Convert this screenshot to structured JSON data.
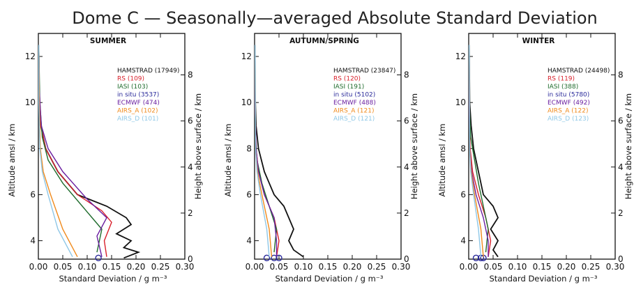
{
  "figure": {
    "title": "Dome C — Seasonally—averaged Absolute Standard Deviation"
  },
  "colors": {
    "HAMSTRAD": "#111111",
    "RS": "#d81f2a",
    "IASI": "#1e6b2c",
    "in situ": "#2a2a9a",
    "ECMWF": "#6a1fa0",
    "AIRS_A": "#f08a1c",
    "AIRS_D": "#8fc7e6"
  },
  "chart_data": [
    {
      "type": "line",
      "title": "SUMMER",
      "xlabel": "Standard Deviation / g m⁻³",
      "ylabel": "Altitude amsl / km",
      "y2label": "Height above surface / km",
      "xlim": [
        0,
        0.3
      ],
      "ylim": [
        3.2,
        13
      ],
      "y2_offset": 3.2,
      "xticks": [
        "0.00",
        "0.05",
        "0.10",
        "0.15",
        "0.20",
        "0.25",
        "0.30"
      ],
      "yticks": [
        "4",
        "6",
        "8",
        "10",
        "12"
      ],
      "y2ticks": [
        "0",
        "2",
        "4",
        "6",
        "8"
      ],
      "legend_position": "top-right",
      "legend": [
        {
          "name": "HAMSTRAD",
          "count": "(17949)"
        },
        {
          "name": "RS",
          "count": "(109)"
        },
        {
          "name": "IASI",
          "count": "(103)"
        },
        {
          "name": "in situ",
          "count": "(3537)"
        },
        {
          "name": "ECMWF",
          "count": "(474)"
        },
        {
          "name": "AIRS_A",
          "count": "(102)"
        },
        {
          "name": "AIRS_D",
          "count": "(101)"
        }
      ],
      "series": [
        {
          "name": "HAMSTRAD",
          "points": [
            [
              0.175,
              3.25
            ],
            [
              0.205,
              3.5
            ],
            [
              0.175,
              3.7
            ],
            [
              0.19,
              4.0
            ],
            [
              0.16,
              4.3
            ],
            [
              0.19,
              4.7
            ],
            [
              0.18,
              5.0
            ],
            [
              0.14,
              5.5
            ],
            [
              0.08,
              6.0
            ],
            [
              0.04,
              7.0
            ],
            [
              0.015,
              8.0
            ],
            [
              0.005,
              9.0
            ],
            [
              0.002,
              10.0
            ],
            [
              0.001,
              12.0
            ]
          ]
        },
        {
          "name": "RS",
          "points": [
            [
              0.14,
              3.3
            ],
            [
              0.135,
              4.0
            ],
            [
              0.15,
              4.8
            ],
            [
              0.13,
              5.3
            ],
            [
              0.08,
              6.0
            ],
            [
              0.04,
              7.0
            ],
            [
              0.015,
              8.0
            ],
            [
              0.005,
              9.0
            ],
            [
              0.002,
              10.5
            ],
            [
              0.001,
              12.5
            ]
          ]
        },
        {
          "name": "IASI",
          "points": [
            [
              0.12,
              3.5
            ],
            [
              0.13,
              4.5
            ],
            [
              0.09,
              5.5
            ],
            [
              0.05,
              6.5
            ],
            [
              0.02,
              7.5
            ],
            [
              0.008,
              8.5
            ],
            [
              0.003,
              10.0
            ],
            [
              0.001,
              12.5
            ]
          ]
        },
        {
          "name": "in situ",
          "points": [
            [
              0.123,
              3.25
            ]
          ]
        },
        {
          "name": "ECMWF",
          "points": [
            [
              0.13,
              3.3
            ],
            [
              0.12,
              4.2
            ],
            [
              0.14,
              5.0
            ],
            [
              0.1,
              5.8
            ],
            [
              0.05,
              7.0
            ],
            [
              0.02,
              8.0
            ],
            [
              0.006,
              9.0
            ],
            [
              0.002,
              10.5
            ],
            [
              0.001,
              12.5
            ]
          ]
        },
        {
          "name": "AIRS_A",
          "points": [
            [
              0.08,
              3.3
            ],
            [
              0.05,
              4.5
            ],
            [
              0.025,
              6.0
            ],
            [
              0.01,
              7.0
            ],
            [
              0.004,
              8.0
            ],
            [
              0.002,
              10.0
            ],
            [
              0.001,
              12.5
            ]
          ]
        },
        {
          "name": "AIRS_D",
          "points": [
            [
              0.07,
              3.3
            ],
            [
              0.04,
              4.5
            ],
            [
              0.02,
              6.0
            ],
            [
              0.008,
              7.0
            ],
            [
              0.003,
              8.0
            ],
            [
              0.001,
              10.0
            ],
            [
              0.001,
              12.5
            ]
          ]
        }
      ]
    },
    {
      "type": "line",
      "title": "AUTUMN/SPRING",
      "xlabel": "Standard Deviation / g m⁻³",
      "ylabel": "Altitude amsl / km",
      "y2label": "Height above surface / km",
      "xlim": [
        0,
        0.3
      ],
      "ylim": [
        3.2,
        13
      ],
      "y2_offset": 3.2,
      "xticks": [
        "0.00",
        "0.05",
        "0.10",
        "0.15",
        "0.20",
        "0.25",
        "0.30"
      ],
      "yticks": [
        "4",
        "6",
        "8",
        "10",
        "12"
      ],
      "y2ticks": [
        "0",
        "2",
        "4",
        "6",
        "8"
      ],
      "legend_position": "top-right",
      "legend": [
        {
          "name": "HAMSTRAD",
          "count": "(23847)"
        },
        {
          "name": "RS",
          "count": "(120)"
        },
        {
          "name": "IASI",
          "count": "(191)"
        },
        {
          "name": "in situ",
          "count": "(5102)"
        },
        {
          "name": "ECMWF",
          "count": "(488)"
        },
        {
          "name": "AIRS_A",
          "count": "(121)"
        },
        {
          "name": "AIRS_D",
          "count": "(121)"
        }
      ],
      "series": [
        {
          "name": "HAMSTRAD",
          "points": [
            [
              0.1,
              3.3
            ],
            [
              0.08,
              3.6
            ],
            [
              0.07,
              4.0
            ],
            [
              0.08,
              4.5
            ],
            [
              0.07,
              5.0
            ],
            [
              0.06,
              5.5
            ],
            [
              0.04,
              6.0
            ],
            [
              0.02,
              7.0
            ],
            [
              0.008,
              8.0
            ],
            [
              0.003,
              9.0
            ],
            [
              0.001,
              10.5
            ],
            [
              0.001,
              12.5
            ]
          ]
        },
        {
          "name": "RS",
          "points": [
            [
              0.045,
              3.3
            ],
            [
              0.05,
              4.0
            ],
            [
              0.04,
              5.0
            ],
            [
              0.02,
              6.0
            ],
            [
              0.008,
              7.0
            ],
            [
              0.003,
              8.0
            ],
            [
              0.001,
              10.0
            ],
            [
              0.001,
              12.5
            ]
          ]
        },
        {
          "name": "IASI",
          "points": [
            [
              0.04,
              3.5
            ],
            [
              0.045,
              4.5
            ],
            [
              0.03,
              5.5
            ],
            [
              0.015,
              6.5
            ],
            [
              0.005,
              7.5
            ],
            [
              0.002,
              8.5
            ],
            [
              0.001,
              12.5
            ]
          ]
        },
        {
          "name": "in situ",
          "points": [
            [
              0.025,
              3.25
            ],
            [
              0.04,
              3.25
            ],
            [
              0.05,
              3.25
            ]
          ]
        },
        {
          "name": "ECMWF",
          "points": [
            [
              0.045,
              3.3
            ],
            [
              0.045,
              4.0
            ],
            [
              0.04,
              5.0
            ],
            [
              0.02,
              6.0
            ],
            [
              0.008,
              7.0
            ],
            [
              0.003,
              8.0
            ],
            [
              0.001,
              10.0
            ],
            [
              0.001,
              12.5
            ]
          ]
        },
        {
          "name": "AIRS_A",
          "points": [
            [
              0.035,
              3.3
            ],
            [
              0.03,
              4.5
            ],
            [
              0.015,
              6.0
            ],
            [
              0.006,
              7.0
            ],
            [
              0.002,
              8.0
            ],
            [
              0.001,
              12.5
            ]
          ]
        },
        {
          "name": "AIRS_D",
          "points": [
            [
              0.03,
              3.3
            ],
            [
              0.025,
              4.5
            ],
            [
              0.012,
              6.0
            ],
            [
              0.005,
              7.0
            ],
            [
              0.002,
              8.0
            ],
            [
              0.001,
              12.5
            ]
          ]
        }
      ]
    },
    {
      "type": "line",
      "title": "WINTER",
      "xlabel": "Standard Deviation / g m⁻³",
      "ylabel": "Altitude amsl / km",
      "y2label": "Height above surface / km",
      "xlim": [
        0,
        0.3
      ],
      "ylim": [
        3.2,
        13
      ],
      "y2_offset": 3.2,
      "xticks": [
        "0.00",
        "0.05",
        "0.10",
        "0.15",
        "0.20",
        "0.25",
        "0.30"
      ],
      "yticks": [
        "4",
        "6",
        "8",
        "10",
        "12"
      ],
      "y2ticks": [
        "0",
        "2",
        "4",
        "6",
        "8"
      ],
      "legend_position": "top-right",
      "legend": [
        {
          "name": "HAMSTRAD",
          "count": "(24498)"
        },
        {
          "name": "RS",
          "count": "(119)"
        },
        {
          "name": "IASI",
          "count": "(388)"
        },
        {
          "name": "in situ",
          "count": "(5780)"
        },
        {
          "name": "ECMWF",
          "count": "(492)"
        },
        {
          "name": "AIRS_A",
          "count": "(122)"
        },
        {
          "name": "AIRS_D",
          "count": "(123)"
        }
      ],
      "series": [
        {
          "name": "HAMSTRAD",
          "points": [
            [
              0.06,
              3.3
            ],
            [
              0.05,
              3.6
            ],
            [
              0.06,
              4.0
            ],
            [
              0.045,
              4.5
            ],
            [
              0.06,
              5.0
            ],
            [
              0.05,
              5.5
            ],
            [
              0.03,
              6.0
            ],
            [
              0.02,
              7.0
            ],
            [
              0.01,
              8.0
            ],
            [
              0.005,
              9.0
            ],
            [
              0.002,
              10.0
            ],
            [
              0.001,
              12.5
            ]
          ]
        },
        {
          "name": "RS",
          "points": [
            [
              0.04,
              3.3
            ],
            [
              0.045,
              4.0
            ],
            [
              0.035,
              5.0
            ],
            [
              0.02,
              6.0
            ],
            [
              0.008,
              7.0
            ],
            [
              0.003,
              8.0
            ],
            [
              0.001,
              10.0
            ],
            [
              0.001,
              12.5
            ]
          ]
        },
        {
          "name": "IASI",
          "points": [
            [
              0.035,
              3.5
            ],
            [
              0.04,
              4.5
            ],
            [
              0.03,
              5.5
            ],
            [
              0.02,
              6.5
            ],
            [
              0.012,
              7.5
            ],
            [
              0.004,
              8.5
            ],
            [
              0.001,
              10.0
            ],
            [
              0.001,
              12.5
            ]
          ]
        },
        {
          "name": "in situ",
          "points": [
            [
              0.015,
              3.25
            ],
            [
              0.025,
              3.25
            ],
            [
              0.03,
              3.25
            ]
          ]
        },
        {
          "name": "ECMWF",
          "points": [
            [
              0.04,
              3.3
            ],
            [
              0.04,
              4.0
            ],
            [
              0.03,
              5.0
            ],
            [
              0.015,
              6.0
            ],
            [
              0.006,
              7.0
            ],
            [
              0.002,
              8.0
            ],
            [
              0.001,
              10.0
            ],
            [
              0.001,
              12.5
            ]
          ]
        },
        {
          "name": "AIRS_A",
          "points": [
            [
              0.03,
              3.3
            ],
            [
              0.025,
              4.5
            ],
            [
              0.012,
              6.0
            ],
            [
              0.005,
              7.0
            ],
            [
              0.002,
              8.0
            ],
            [
              0.001,
              12.5
            ]
          ]
        },
        {
          "name": "AIRS_D",
          "points": [
            [
              0.025,
              3.3
            ],
            [
              0.02,
              4.5
            ],
            [
              0.01,
              6.0
            ],
            [
              0.004,
              7.0
            ],
            [
              0.002,
              8.0
            ],
            [
              0.001,
              12.5
            ]
          ]
        }
      ]
    }
  ]
}
